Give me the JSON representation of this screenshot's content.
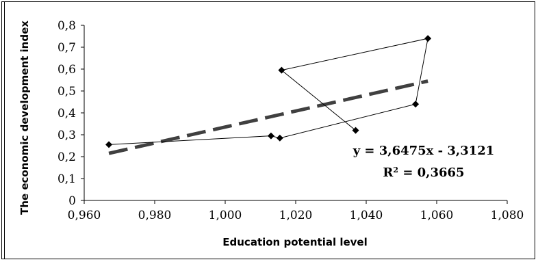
{
  "chart_data": {
    "type": "scatter",
    "xlabel": "Education potential level",
    "ylabel": "The economic development index",
    "xlim": [
      0.96,
      1.08
    ],
    "ylim": [
      0,
      0.8
    ],
    "x_ticks": [
      "0,960",
      "0,980",
      "1,000",
      "1,020",
      "1,040",
      "1,060",
      "1,080"
    ],
    "y_ticks": [
      "0",
      "0,1",
      "0,2",
      "0,3",
      "0,4",
      "0,5",
      "0,6",
      "0,7",
      "0,8"
    ],
    "grid": false,
    "series": [
      {
        "points": [
          {
            "x": 0.967,
            "y": 0.255
          },
          {
            "x": 1.013,
            "y": 0.295
          },
          {
            "x": 1.0155,
            "y": 0.285
          },
          {
            "x": 1.054,
            "y": 0.44
          },
          {
            "x": 1.0575,
            "y": 0.74
          },
          {
            "x": 1.016,
            "y": 0.595
          },
          {
            "x": 1.037,
            "y": 0.32
          }
        ],
        "connected": true,
        "marker": "diamond",
        "color": "#000000"
      }
    ],
    "trendline": {
      "x": [
        0.967,
        1.0575
      ],
      "style": "dashed",
      "color": "#404040",
      "equation": "y = 3,6475x - 3,3121",
      "r2_label": "R",
      "r2_sup": "2",
      "r2_value": " = 0,3665",
      "slope": 3.6475,
      "intercept": -3.3121
    }
  }
}
